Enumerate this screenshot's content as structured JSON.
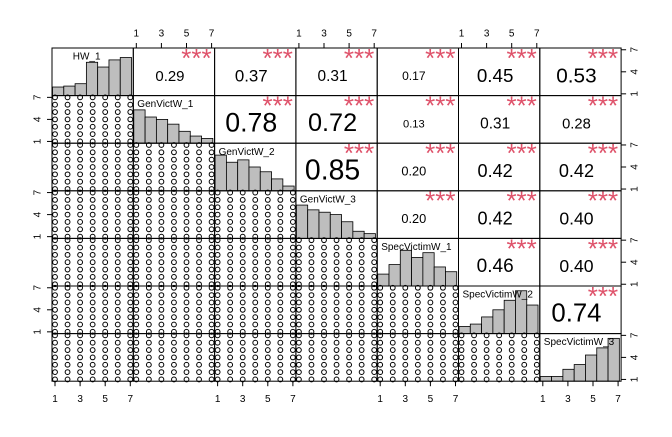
{
  "chart_data": {
    "type": "correlation_matrix",
    "variables": [
      "HW_1",
      "GenVictW_1",
      "GenVictW_2",
      "GenVictW_3",
      "SpecVictimW_1",
      "SpecVictimW_2",
      "SpecVictimW_3"
    ],
    "correlations": [
      [
        0.29,
        0.37,
        0.31,
        0.17,
        0.45,
        0.53
      ],
      [
        0.78,
        0.72,
        0.13,
        0.31,
        0.28
      ],
      [
        0.85,
        0.2,
        0.42,
        0.42
      ],
      [
        0.2,
        0.42,
        0.4
      ],
      [
        0.46,
        0.4
      ],
      [
        0.74
      ]
    ],
    "correlation_labels": [
      [
        "0.29",
        "0.37",
        "0.31",
        "0.17",
        "0.45",
        "0.53"
      ],
      [
        "0.78",
        "0.72",
        "0.13",
        "0.31",
        "0.28"
      ],
      [
        "0.85",
        "0.20",
        "0.42",
        "0.42"
      ],
      [
        "0.20",
        "0.42",
        "0.40"
      ],
      [
        "0.46",
        "0.40"
      ],
      [
        "0.74"
      ]
    ],
    "significance": [
      [
        "***",
        "***",
        "***",
        "***",
        "***",
        "***"
      ],
      [
        "***",
        "***",
        "***",
        "***",
        "***"
      ],
      [
        "***",
        "***",
        "***",
        "***"
      ],
      [
        "***",
        "***",
        "***"
      ],
      [
        "***",
        "***"
      ],
      [
        "***"
      ]
    ],
    "levels": [
      1,
      2,
      3,
      4,
      5,
      6,
      7
    ],
    "bins": [
      0.8,
      1.7,
      2.6,
      3.5,
      4.4,
      5.3,
      6.2,
      7.1
    ],
    "histograms": [
      [
        18,
        20,
        25,
        70,
        60,
        75,
        80
      ],
      [
        70,
        55,
        50,
        40,
        25,
        15,
        10
      ],
      [
        75,
        60,
        65,
        50,
        40,
        25,
        10
      ],
      [
        70,
        60,
        55,
        50,
        35,
        15,
        10
      ],
      [
        25,
        45,
        75,
        60,
        70,
        40,
        30
      ],
      [
        15,
        20,
        35,
        50,
        70,
        90,
        60
      ],
      [
        10,
        10,
        25,
        35,
        55,
        70,
        90
      ]
    ],
    "hist_ylim": [
      0,
      100
    ],
    "xlim": [
      0.76,
      7.24
    ],
    "ylim": [
      0.76,
      7.24
    ],
    "xticks": [
      1,
      3,
      5,
      7
    ],
    "yticks": [
      1,
      4,
      7
    ],
    "point_color": "#000000",
    "bar_color": "#bebebe",
    "star_color": "#DF536B"
  }
}
